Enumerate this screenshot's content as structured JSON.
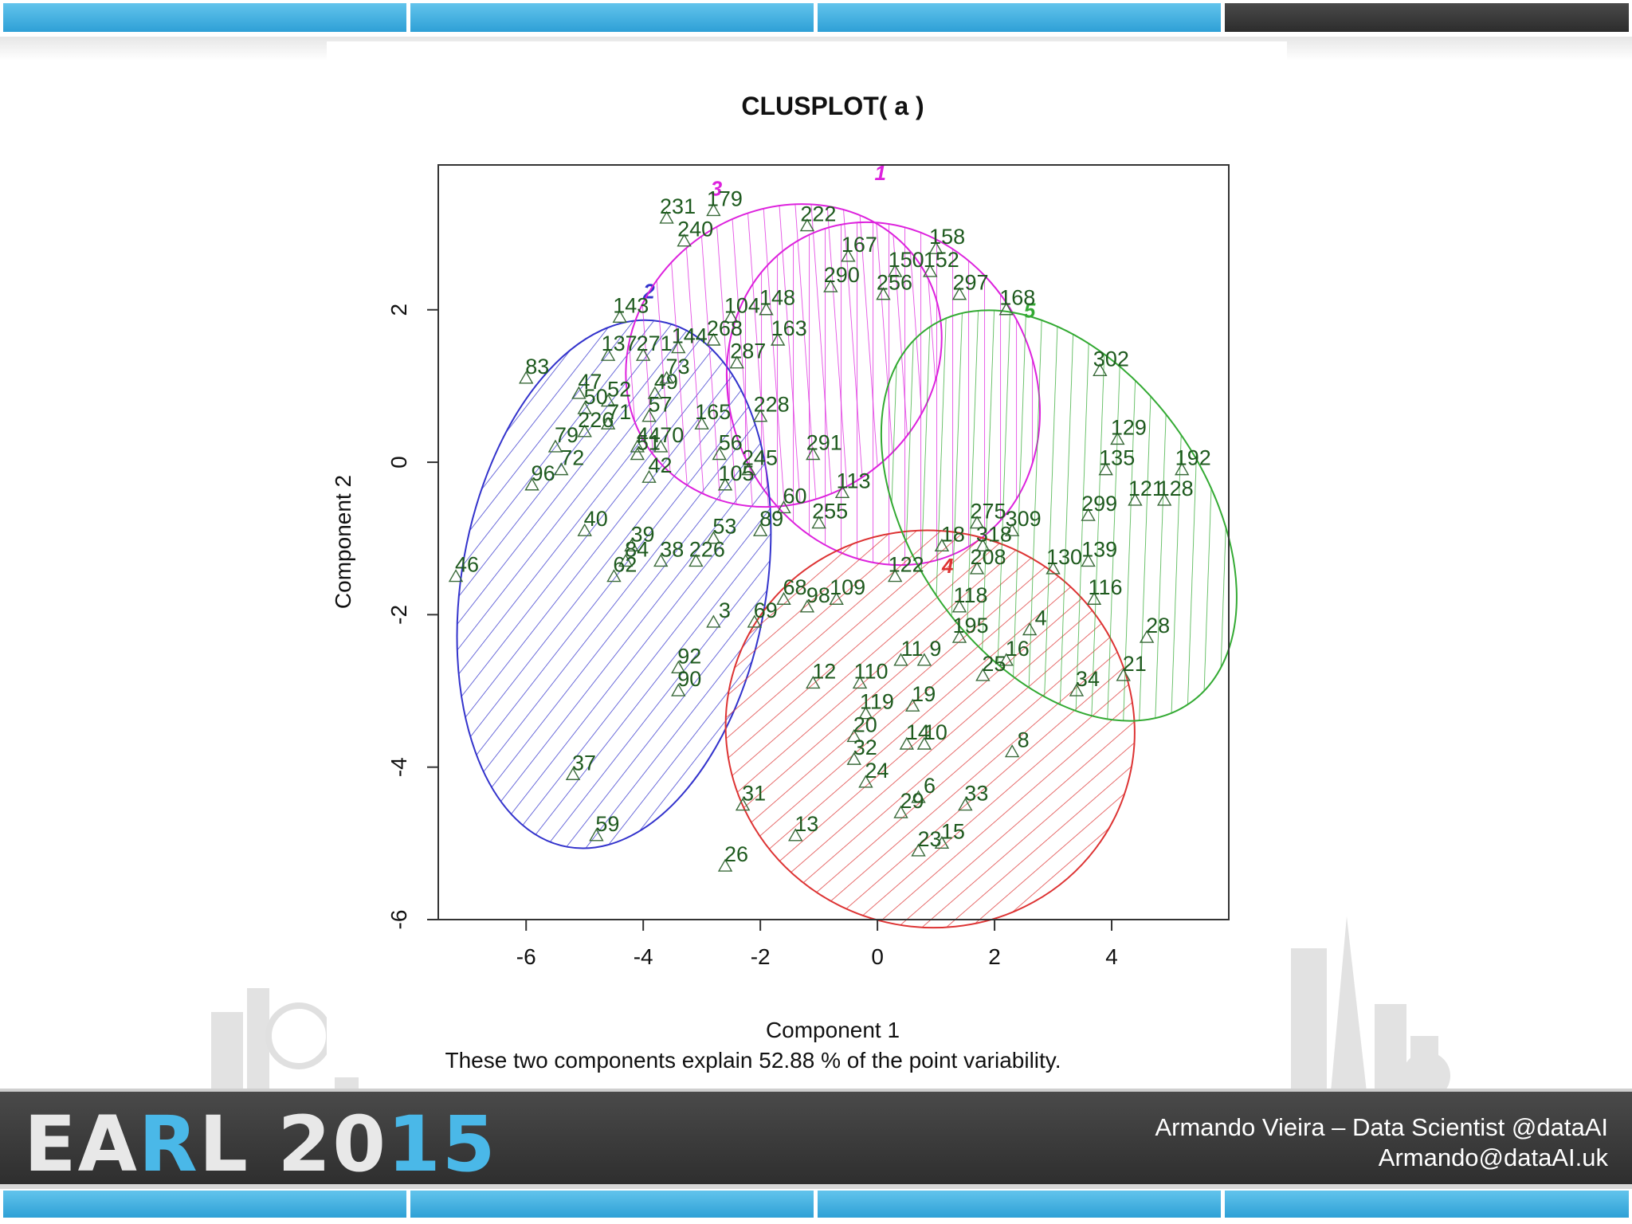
{
  "footer": {
    "logo_white": "EA",
    "logo_r": "R",
    "logo_l": "L 20",
    "logo_blue": "15",
    "credit_line1": "Armando Vieira – Data Scientist @dataAI",
    "credit_line2": "Armando@dataAI.uk"
  },
  "colors": {
    "accent_blue": "#3aaee0",
    "dark_bar": "#333333",
    "cluster1": "#dd22dd",
    "cluster2": "#3333cc",
    "cluster3": "#dd22dd",
    "cluster4": "#dd3333",
    "cluster5": "#33aa33",
    "point_label": "#1e5a1e"
  },
  "chart_data": {
    "type": "scatter",
    "title": "CLUSPLOT( a )",
    "xlabel": "Component 1",
    "ylabel": "Component 2",
    "subtitle": "These two components explain 52.88 % of the point variability.",
    "xlim": [
      -7.5,
      6
    ],
    "ylim": [
      -6,
      3.9
    ],
    "xticks": [
      -6,
      -4,
      -2,
      0,
      2,
      4
    ],
    "yticks": [
      -6,
      -4,
      -2,
      0,
      2
    ],
    "grid": false,
    "clusters": [
      {
        "label": "1",
        "color": "#dd22dd",
        "center": [
          0.1,
          0.9
        ],
        "rx": 2.6,
        "ry": 2.3,
        "angle": -25,
        "label_pos": [
          0.05,
          3.7
        ]
      },
      {
        "label": "2",
        "color": "#3333cc",
        "center": [
          -4.5,
          -1.6
        ],
        "rx": 2.6,
        "ry": 3.5,
        "angle": 10,
        "label_pos": [
          -3.9,
          2.15
        ]
      },
      {
        "label": "3",
        "color": "#dd22dd",
        "center": [
          -1.6,
          1.4
        ],
        "rx": 2.8,
        "ry": 1.9,
        "angle": -35,
        "label_pos": [
          -2.75,
          3.5
        ]
      },
      {
        "label": "4",
        "color": "#dd3333",
        "center": [
          0.9,
          -3.5
        ],
        "rx": 3.5,
        "ry": 2.6,
        "angle": 15,
        "label_pos": [
          1.2,
          -1.45
        ]
      },
      {
        "label": "5",
        "color": "#33aa33",
        "center": [
          3.1,
          -0.7
        ],
        "rx": 2.5,
        "ry": 3.0,
        "angle": -35,
        "label_pos": [
          2.6,
          1.9
        ]
      }
    ],
    "points": [
      {
        "id": "231",
        "x": -3.6,
        "y": 3.2
      },
      {
        "id": "179",
        "x": -2.8,
        "y": 3.3
      },
      {
        "id": "240",
        "x": -3.3,
        "y": 2.9
      },
      {
        "id": "222",
        "x": -1.2,
        "y": 3.1
      },
      {
        "id": "167",
        "x": -0.5,
        "y": 2.7
      },
      {
        "id": "158",
        "x": 1.0,
        "y": 2.8
      },
      {
        "id": "150",
        "x": 0.3,
        "y": 2.5
      },
      {
        "id": "152",
        "x": 0.9,
        "y": 2.5
      },
      {
        "id": "290",
        "x": -0.8,
        "y": 2.3
      },
      {
        "id": "256",
        "x": 0.1,
        "y": 2.2
      },
      {
        "id": "297",
        "x": 1.4,
        "y": 2.2
      },
      {
        "id": "168",
        "x": 2.2,
        "y": 2.0
      },
      {
        "id": "143",
        "x": -4.4,
        "y": 1.9
      },
      {
        "id": "104",
        "x": -2.5,
        "y": 1.9
      },
      {
        "id": "148",
        "x": -1.9,
        "y": 2.0
      },
      {
        "id": "144",
        "x": -3.4,
        "y": 1.5
      },
      {
        "id": "271",
        "x": -4.0,
        "y": 1.4
      },
      {
        "id": "137",
        "x": -4.6,
        "y": 1.4
      },
      {
        "id": "268",
        "x": -2.8,
        "y": 1.6
      },
      {
        "id": "163",
        "x": -1.7,
        "y": 1.6
      },
      {
        "id": "287",
        "x": -2.4,
        "y": 1.3
      },
      {
        "id": "83",
        "x": -6.0,
        "y": 1.1
      },
      {
        "id": "47",
        "x": -5.1,
        "y": 0.9
      },
      {
        "id": "52",
        "x": -4.6,
        "y": 0.8
      },
      {
        "id": "49",
        "x": -3.8,
        "y": 0.9
      },
      {
        "id": "73",
        "x": -3.6,
        "y": 1.1
      },
      {
        "id": "50",
        "x": -5.0,
        "y": 0.7
      },
      {
        "id": "57",
        "x": -3.9,
        "y": 0.6
      },
      {
        "id": "71",
        "x": -4.6,
        "y": 0.5
      },
      {
        "id": "226",
        "x": -5.0,
        "y": 0.4
      },
      {
        "id": "79",
        "x": -5.5,
        "y": 0.2
      },
      {
        "id": "44",
        "x": -4.1,
        "y": 0.2
      },
      {
        "id": "70",
        "x": -3.7,
        "y": 0.2
      },
      {
        "id": "51",
        "x": -4.1,
        "y": 0.1
      },
      {
        "id": "72",
        "x": -5.4,
        "y": -0.1
      },
      {
        "id": "96",
        "x": -5.9,
        "y": -0.3
      },
      {
        "id": "42",
        "x": -3.9,
        "y": -0.2
      },
      {
        "id": "165",
        "x": -3.0,
        "y": 0.5
      },
      {
        "id": "56",
        "x": -2.7,
        "y": 0.1
      },
      {
        "id": "228",
        "x": -2.0,
        "y": 0.6
      },
      {
        "id": "291",
        "x": -1.1,
        "y": 0.1
      },
      {
        "id": "245",
        "x": -2.2,
        "y": -0.1
      },
      {
        "id": "105",
        "x": -2.6,
        "y": -0.3
      },
      {
        "id": "60",
        "x": -1.6,
        "y": -0.6
      },
      {
        "id": "40",
        "x": -5.0,
        "y": -0.9
      },
      {
        "id": "39",
        "x": -4.2,
        "y": -1.1
      },
      {
        "id": "38",
        "x": -3.7,
        "y": -1.3
      },
      {
        "id": "226b",
        "x": -3.1,
        "y": -1.3
      },
      {
        "id": "53",
        "x": -2.8,
        "y": -1.0
      },
      {
        "id": "84",
        "x": -4.3,
        "y": -1.3
      },
      {
        "id": "62",
        "x": -4.5,
        "y": -1.5
      },
      {
        "id": "89",
        "x": -2.0,
        "y": -0.9
      },
      {
        "id": "113",
        "x": -0.6,
        "y": -0.4
      },
      {
        "id": "255",
        "x": -1.0,
        "y": -0.8
      },
      {
        "id": "46",
        "x": -7.2,
        "y": -1.5
      },
      {
        "id": "3",
        "x": -2.8,
        "y": -2.1
      },
      {
        "id": "69",
        "x": -2.1,
        "y": -2.1
      },
      {
        "id": "68",
        "x": -1.6,
        "y": -1.8
      },
      {
        "id": "98",
        "x": -1.2,
        "y": -1.9
      },
      {
        "id": "109",
        "x": -0.7,
        "y": -1.8
      },
      {
        "id": "92",
        "x": -3.4,
        "y": -2.7
      },
      {
        "id": "90",
        "x": -3.4,
        "y": -3.0
      },
      {
        "id": "37",
        "x": -5.2,
        "y": -4.1
      },
      {
        "id": "59",
        "x": -4.8,
        "y": -4.9
      },
      {
        "id": "12",
        "x": -1.1,
        "y": -2.9
      },
      {
        "id": "110",
        "x": -0.3,
        "y": -2.9
      },
      {
        "id": "11",
        "x": 0.4,
        "y": -2.6
      },
      {
        "id": "9",
        "x": 0.8,
        "y": -2.6
      },
      {
        "id": "119",
        "x": -0.2,
        "y": -3.3
      },
      {
        "id": "19",
        "x": 0.6,
        "y": -3.2
      },
      {
        "id": "20",
        "x": -0.4,
        "y": -3.6
      },
      {
        "id": "14",
        "x": 0.5,
        "y": -3.7
      },
      {
        "id": "10",
        "x": 0.8,
        "y": -3.7
      },
      {
        "id": "8",
        "x": 2.3,
        "y": -3.8
      },
      {
        "id": "32",
        "x": -0.4,
        "y": -3.9
      },
      {
        "id": "24",
        "x": -0.2,
        "y": -4.2
      },
      {
        "id": "6",
        "x": 0.7,
        "y": -4.4
      },
      {
        "id": "29",
        "x": 0.4,
        "y": -4.6
      },
      {
        "id": "33",
        "x": 1.5,
        "y": -4.5
      },
      {
        "id": "31",
        "x": -2.3,
        "y": -4.5
      },
      {
        "id": "13",
        "x": -1.4,
        "y": -4.9
      },
      {
        "id": "23",
        "x": 0.7,
        "y": -5.1
      },
      {
        "id": "15",
        "x": 1.1,
        "y": -5.0
      },
      {
        "id": "26",
        "x": -2.6,
        "y": -5.3
      },
      {
        "id": "18",
        "x": 1.1,
        "y": -1.1
      },
      {
        "id": "122",
        "x": 0.3,
        "y": -1.5
      },
      {
        "id": "208",
        "x": 1.7,
        "y": -1.4
      },
      {
        "id": "318",
        "x": 1.8,
        "y": -1.1
      },
      {
        "id": "275",
        "x": 1.7,
        "y": -0.8
      },
      {
        "id": "309",
        "x": 2.3,
        "y": -0.9
      },
      {
        "id": "299",
        "x": 3.6,
        "y": -0.7
      },
      {
        "id": "121",
        "x": 4.4,
        "y": -0.5
      },
      {
        "id": "128",
        "x": 4.9,
        "y": -0.5
      },
      {
        "id": "192",
        "x": 5.2,
        "y": -0.1
      },
      {
        "id": "129",
        "x": 4.1,
        "y": 0.3
      },
      {
        "id": "135",
        "x": 3.9,
        "y": -0.1
      },
      {
        "id": "302",
        "x": 3.8,
        "y": 1.2
      },
      {
        "id": "118",
        "x": 1.4,
        "y": -1.9
      },
      {
        "id": "195",
        "x": 1.4,
        "y": -2.3
      },
      {
        "id": "4",
        "x": 2.6,
        "y": -2.2
      },
      {
        "id": "16",
        "x": 2.2,
        "y": -2.6
      },
      {
        "id": "25",
        "x": 1.8,
        "y": -2.8
      },
      {
        "id": "116",
        "x": 3.7,
        "y": -1.8
      },
      {
        "id": "130",
        "x": 3.0,
        "y": -1.4
      },
      {
        "id": "139",
        "x": 3.6,
        "y": -1.3
      },
      {
        "id": "28",
        "x": 4.6,
        "y": -2.3
      },
      {
        "id": "21",
        "x": 4.2,
        "y": -2.8
      },
      {
        "id": "34",
        "x": 3.4,
        "y": -3.0
      }
    ]
  }
}
